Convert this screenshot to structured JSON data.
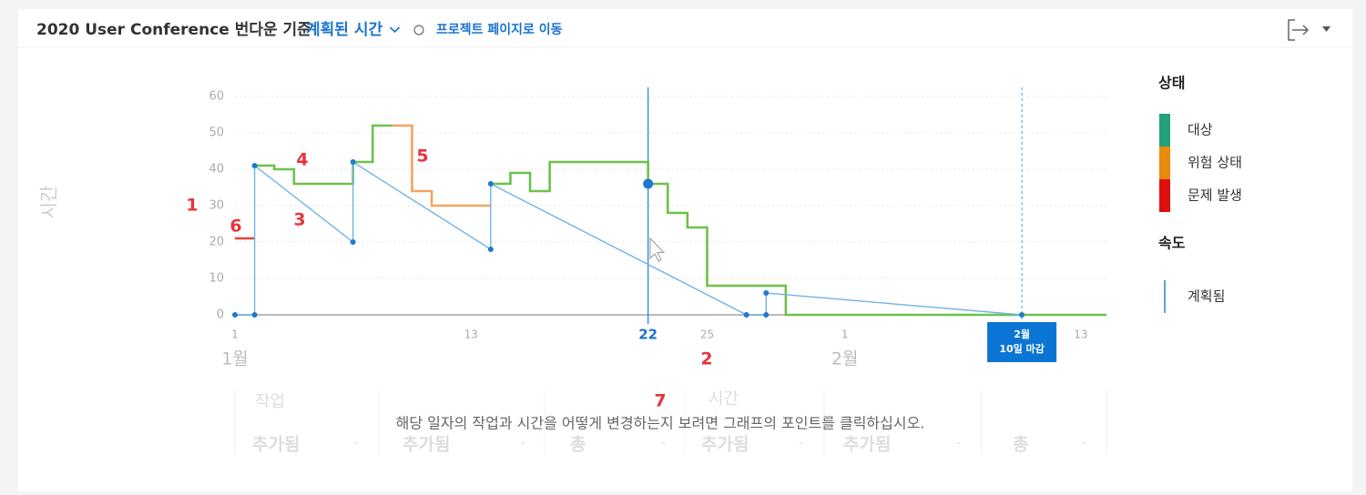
{
  "header": {
    "title": "2020 User Conference 번다운 기준",
    "dropdown": "계획된 시간",
    "link": "프로젝트 페이지로 이동"
  },
  "chart_data": {
    "type": "line",
    "y_label": "시간",
    "xlim": [
      1,
      45.3
    ],
    "ylim": [
      0,
      60
    ],
    "yticks": [
      0,
      10,
      20,
      30,
      40,
      50,
      60
    ],
    "grid": true,
    "xticks": [
      1,
      13,
      22,
      25,
      {
        "value": 32,
        "label": "1"
      },
      {
        "value": 44,
        "label": "13"
      }
    ],
    "month_labels": [
      {
        "value": 1,
        "label": "1월"
      },
      {
        "value": 32,
        "label": "2월"
      }
    ],
    "series": [
      {
        "name": "대상",
        "color": "#6cc24a",
        "x": [
          2,
          3,
          3,
          4,
          4,
          7,
          7,
          8,
          8,
          9,
          null,
          14,
          15,
          15,
          16,
          16,
          17,
          17,
          22,
          22,
          23,
          23,
          24,
          24,
          25,
          25,
          29,
          29,
          45.3
        ],
        "values": [
          41,
          41,
          40,
          40,
          36,
          36,
          42,
          42,
          52,
          52,
          null,
          36,
          36,
          39,
          39,
          34,
          34,
          42,
          42,
          36,
          36,
          28,
          28,
          24,
          24,
          8,
          8,
          0,
          0
        ]
      },
      {
        "name": "위험 상태",
        "color": "#f4a460",
        "x": [
          9,
          10,
          10,
          11,
          11,
          14
        ],
        "values": [
          52,
          52,
          34,
          34,
          30,
          30
        ]
      },
      {
        "name": "문제 발생",
        "color": "#e8453c",
        "x": [
          1,
          2
        ],
        "values": [
          21,
          21
        ]
      },
      {
        "name": "계획됨",
        "color": "#6fb3e8",
        "dots": true,
        "x": [
          1,
          2,
          2,
          7,
          7,
          14,
          14,
          27,
          28,
          28,
          41
        ],
        "values": [
          0,
          0,
          41,
          20,
          42,
          18,
          36,
          0,
          0,
          6,
          0
        ]
      }
    ],
    "marker": {
      "x": 22,
      "value": 36
    },
    "deadline": {
      "x": 41,
      "label_lines": [
        "2월",
        "10일 마감"
      ]
    },
    "callouts": [
      "1",
      "2",
      "3",
      "4",
      "5",
      "6",
      "7"
    ]
  },
  "legend": {
    "status_title": "상태",
    "status_items": [
      {
        "label": "대상",
        "color": "#23a07c"
      },
      {
        "label": "위험 상태",
        "color": "#e88a0e"
      },
      {
        "label": "문제 발생",
        "color": "#e00f0f"
      }
    ],
    "velocity_title": "속도",
    "velocity_item": {
      "label": "계획됨",
      "color": "#2b7fd4"
    }
  },
  "table": {
    "groups": [
      "작업",
      "시간"
    ],
    "columns": [
      "추가됨",
      "추가됨",
      "총",
      "추가됨",
      "추가됨",
      "총"
    ],
    "cells": [
      "-",
      "-",
      "-",
      "-",
      "-",
      "-"
    ],
    "message": "해당 일자의 작업과 시간을 어떻게 변경하는지 보려면 그래프의 포인트를 클릭하십시오."
  }
}
